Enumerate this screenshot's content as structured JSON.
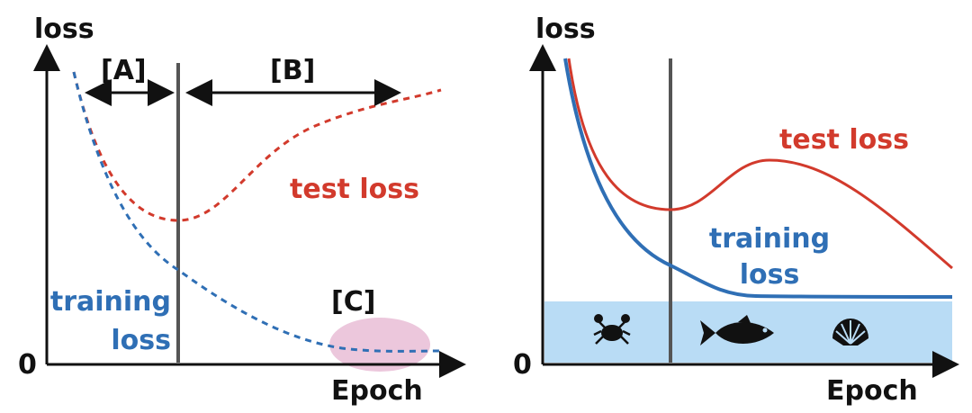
{
  "left_panel": {
    "y_axis_label": "loss",
    "x_axis_label": "Epoch",
    "origin_label": "0",
    "region_labels": [
      "[A]",
      "[B]",
      "[C]"
    ],
    "test_label": "test loss",
    "training_label": [
      "training",
      "loss"
    ]
  },
  "right_panel": {
    "y_axis_label": "loss",
    "x_axis_label": "Epoch",
    "origin_label": "0",
    "test_label": "test loss",
    "training_label": [
      "training",
      "loss"
    ]
  }
}
